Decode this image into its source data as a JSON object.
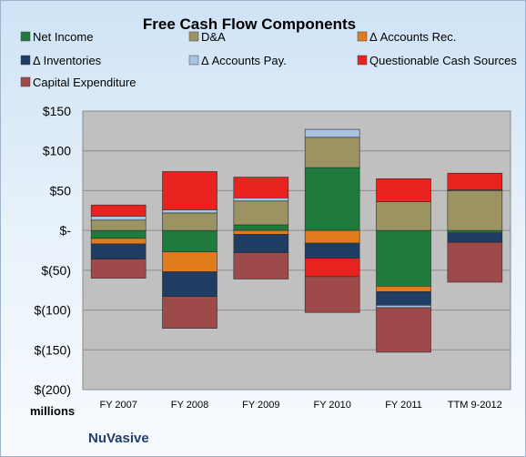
{
  "chart_data": {
    "type": "bar",
    "stacked": true,
    "title": "Free Cash Flow Components",
    "unit_label": "millions",
    "company": "NuVasive",
    "categories": [
      "FY 2007",
      "FY 2008",
      "FY 2009",
      "FY 2010",
      "FY 2011",
      "TTM 9-2012"
    ],
    "ylim": [
      -200,
      150
    ],
    "yticks": [
      150,
      100,
      50,
      0,
      -50,
      -100,
      -150,
      -200
    ],
    "ytick_labels": [
      "$150",
      "$100",
      "$50",
      "$-",
      "$(50)",
      "$(100)",
      "$(150)",
      "$(200)"
    ],
    "grid": true,
    "legend_position": "top",
    "series": [
      {
        "name": "Net Income",
        "color": "#1f7a3e",
        "values": [
          -10,
          -27,
          7,
          79,
          -70,
          -3
        ]
      },
      {
        "name": "D&A",
        "color": "#9b9362",
        "values": [
          13,
          22,
          30,
          38,
          36,
          50
        ]
      },
      {
        "name": "Δ Accounts Rec.",
        "color": "#e07b1e",
        "values": [
          -7,
          -25,
          -5,
          -16,
          -7,
          0
        ]
      },
      {
        "name": "Δ Inventories",
        "color": "#1f3c62",
        "values": [
          -19,
          -31,
          -23,
          -19,
          -17,
          -12
        ]
      },
      {
        "name": "Δ Accounts Pay.",
        "color": "#a9c2e0",
        "values": [
          5,
          4,
          4,
          10,
          -3,
          1
        ]
      },
      {
        "name": "Questionable Cash Sources",
        "color": "#e8231f",
        "values": [
          14,
          48,
          26,
          0,
          29,
          21
        ]
      },
      {
        "name": "Capital Expenditure",
        "color": "#9e4a4a",
        "values": [
          -24,
          -40,
          -33,
          -45,
          -56,
          -50
        ]
      }
    ],
    "negative_extras": {
      "FY 2010": {
        "Questionable Cash Sources": -23
      }
    }
  }
}
